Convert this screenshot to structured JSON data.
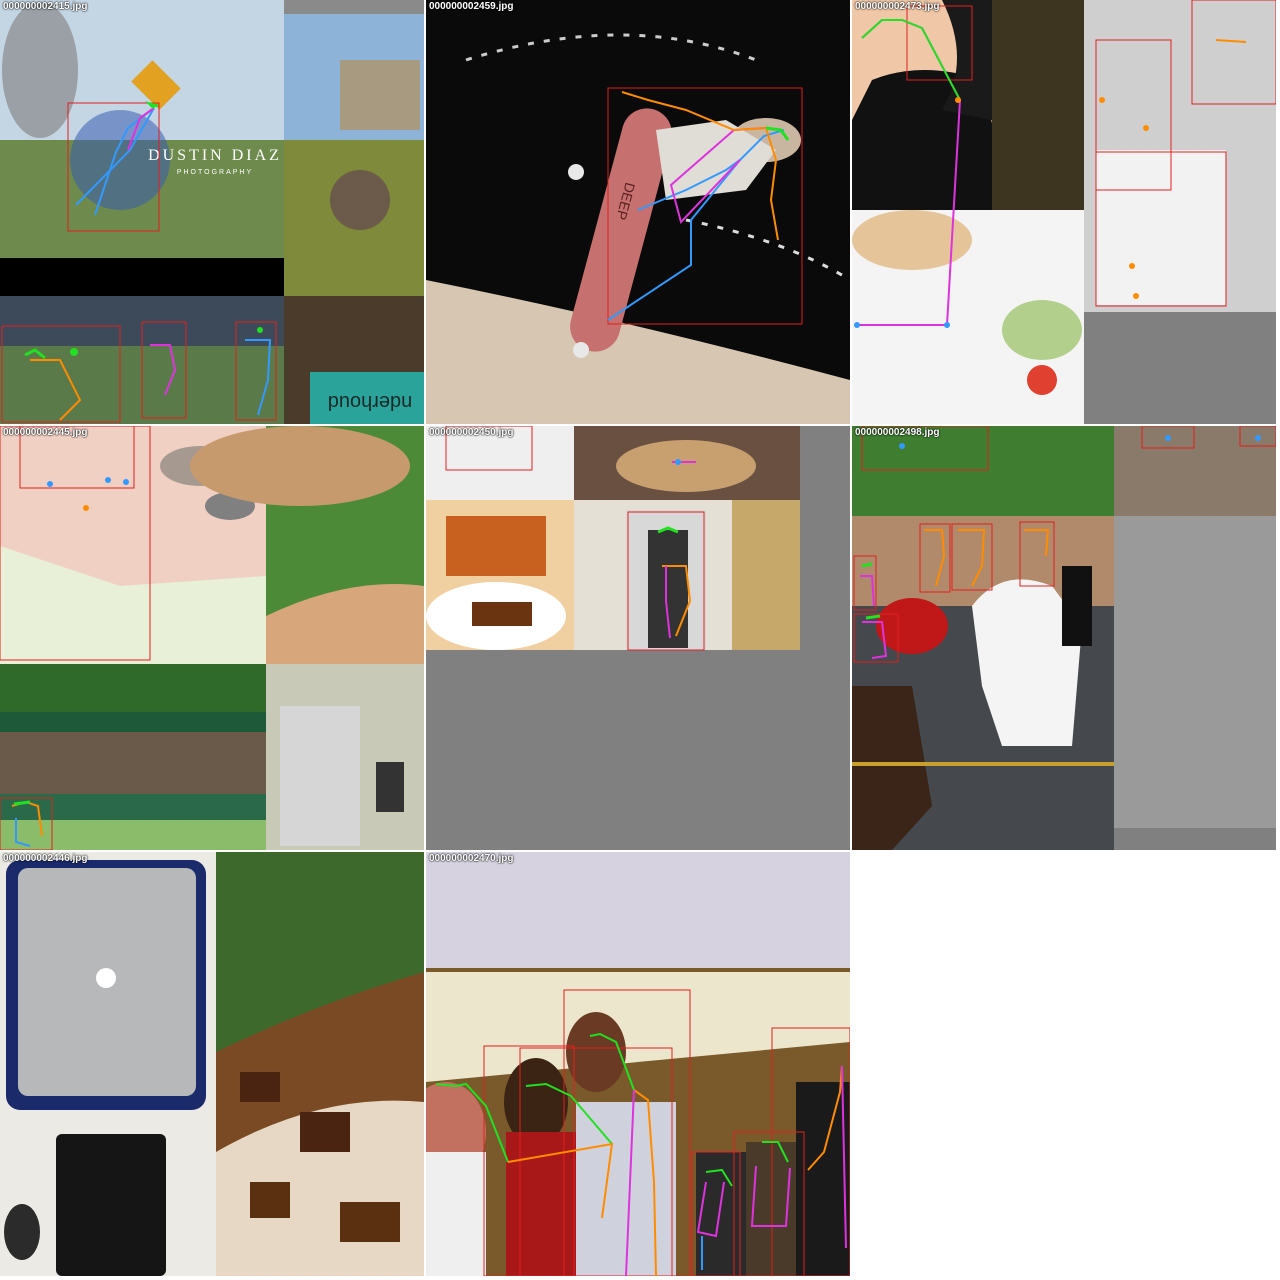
{
  "tiles": [
    {
      "filename": "000000002415.jpg",
      "watermark_line1": "DUSTIN DIAZ",
      "watermark_line2": "PHOTOGRAPHY"
    },
    {
      "filename": "000000002459.jpg",
      "board_text": "DEEP"
    },
    {
      "filename": "000000002473.jpg"
    },
    {
      "filename": "000000002445.jpg"
    },
    {
      "filename": "000000002450.jpg"
    },
    {
      "filename": "000000002498.jpg"
    },
    {
      "filename": "000000002446.jpg"
    },
    {
      "filename": "000000002470.jpg"
    }
  ],
  "extra_text": {
    "banner": "nderhoud"
  },
  "colors": {
    "box": "#e02020",
    "limb_green": "#22e022",
    "limb_orange": "#ff8c00",
    "limb_blue": "#3399ff",
    "limb_magenta": "#dd33dd",
    "padding": "#808080"
  }
}
